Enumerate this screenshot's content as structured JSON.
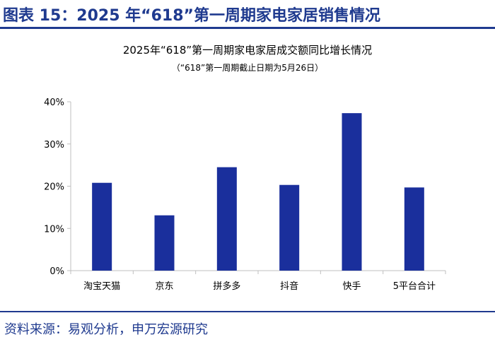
{
  "figure": {
    "header": "图表 15：2025 年“618”第一周期家电家居销售情况",
    "source": "资料来源：易观分析，申万宏源研究"
  },
  "colors": {
    "accent": "#1f3a8f",
    "bar": "#1a2f9c",
    "axis": "#bfbfbf"
  },
  "chart_data": {
    "type": "bar",
    "title": "2025年“618”第一周期家电家居成交额同比增长情况",
    "subtitle": "（“618”第一周期截止日期为5月26日）",
    "xlabel": "",
    "ylabel": "",
    "categories": [
      "淘宝天猫",
      "京东",
      "拼多多",
      "抖音",
      "快手",
      "5平台合计"
    ],
    "values": [
      20.8,
      13.1,
      24.5,
      20.3,
      37.3,
      19.7
    ],
    "ylim": [
      0,
      40
    ],
    "yticks": [
      0,
      10,
      20,
      30,
      40
    ],
    "ytick_labels": [
      "0%",
      "10%",
      "20%",
      "30%",
      "40%"
    ],
    "grid": false,
    "legend": "none"
  }
}
